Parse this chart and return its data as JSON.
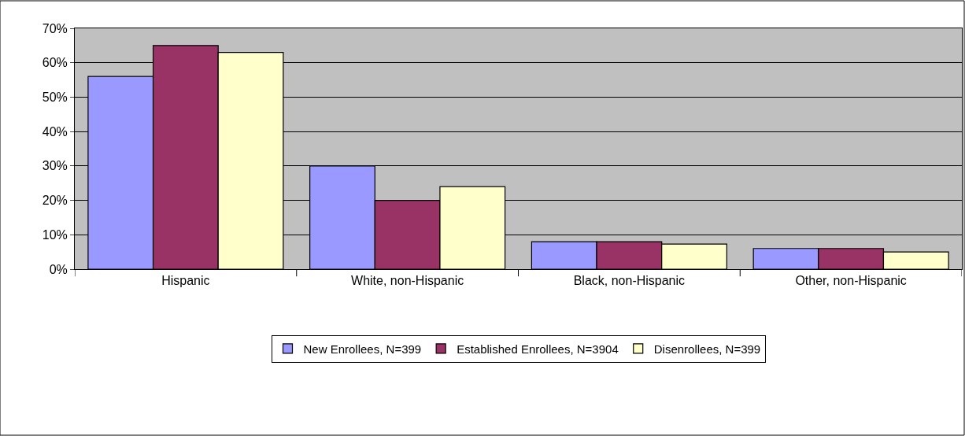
{
  "chart_data": {
    "type": "bar",
    "categories": [
      "Hispanic",
      "White, non-Hispanic",
      "Black, non-Hispanic",
      "Other, non-Hispanic"
    ],
    "series": [
      {
        "name": "New Enrollees, N=399",
        "color": "#9999ff",
        "values": [
          56,
          30,
          8,
          6
        ]
      },
      {
        "name": "Established Enrollees, N=3904",
        "color": "#993366",
        "values": [
          65,
          20,
          8,
          6
        ]
      },
      {
        "name": "Disenrollees, N=399",
        "color": "#ffffcc",
        "values": [
          63,
          24,
          7.3,
          5
        ]
      }
    ],
    "ylim": [
      0,
      70
    ],
    "yticks": [
      {
        "value": 0,
        "label": "0%"
      },
      {
        "value": 10,
        "label": "10%"
      },
      {
        "value": 20,
        "label": "20%"
      },
      {
        "value": 30,
        "label": "30%"
      },
      {
        "value": 40,
        "label": "40%"
      },
      {
        "value": 50,
        "label": "50%"
      },
      {
        "value": 60,
        "label": "60%"
      },
      {
        "value": 70,
        "label": "70%"
      }
    ],
    "grid": "y",
    "legend": "bottom"
  }
}
